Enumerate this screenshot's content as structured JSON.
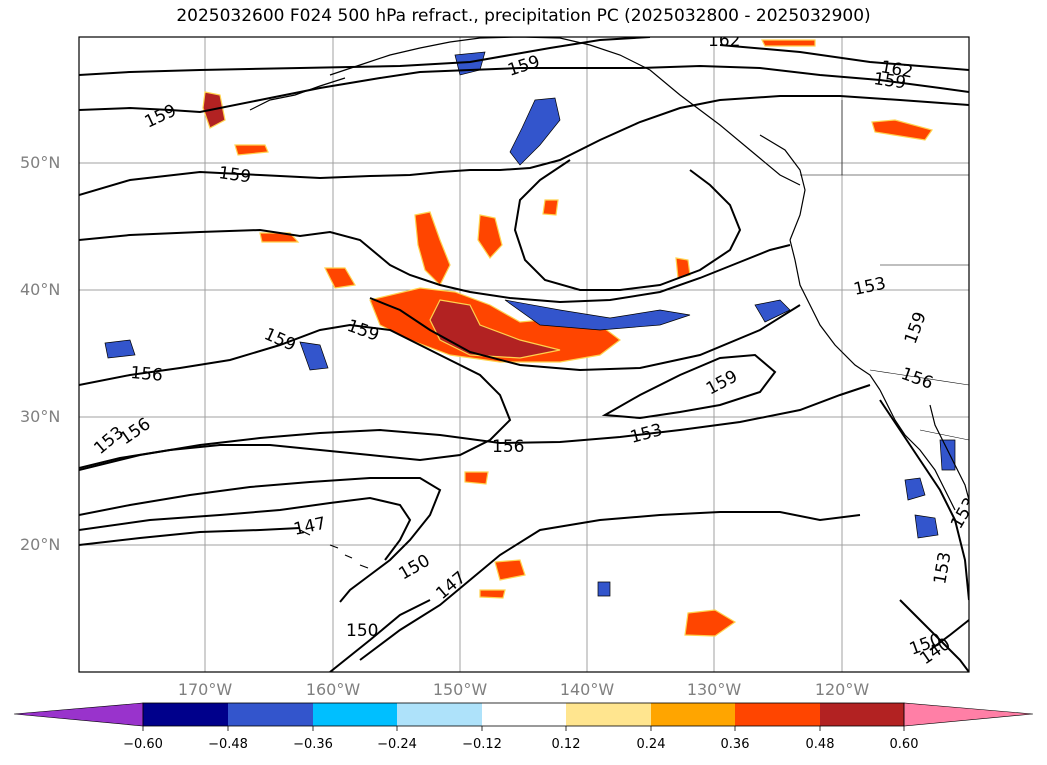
{
  "title": "2025032600 F024 500 hPa refract., precipitation PC (2025032800 - 2025032900)",
  "lat_labels": [
    "50°N",
    "40°N",
    "30°N",
    "20°N"
  ],
  "lon_labels": [
    "170°W",
    "160°W",
    "150°W",
    "140°W",
    "130°W",
    "120°W"
  ],
  "contour_labels": [
    "162",
    "162",
    "159",
    "159",
    "159",
    "159",
    "159",
    "159",
    "159",
    "159",
    "156",
    "156",
    "156",
    "156",
    "153",
    "153",
    "153",
    "153",
    "153",
    "150",
    "150",
    "150",
    "147",
    "147",
    "140"
  ],
  "colorbar": {
    "ticks": [
      "−0.60",
      "−0.48",
      "−0.36",
      "−0.24",
      "−0.12",
      "0.12",
      "0.24",
      "0.36",
      "0.48",
      "0.60"
    ],
    "colors": [
      "#9933cc",
      "#00008b",
      "#3355cc",
      "#00bfff",
      "#aee2fa",
      "#ffffff",
      "#ffe58f",
      "#ffa500",
      "#ff4500",
      "#b22222",
      "#ff7fa6"
    ]
  },
  "colors": {
    "land": "#ffffff",
    "contour": "#000000",
    "grid": "#a0a0a0",
    "tick_label": "#808080"
  }
}
